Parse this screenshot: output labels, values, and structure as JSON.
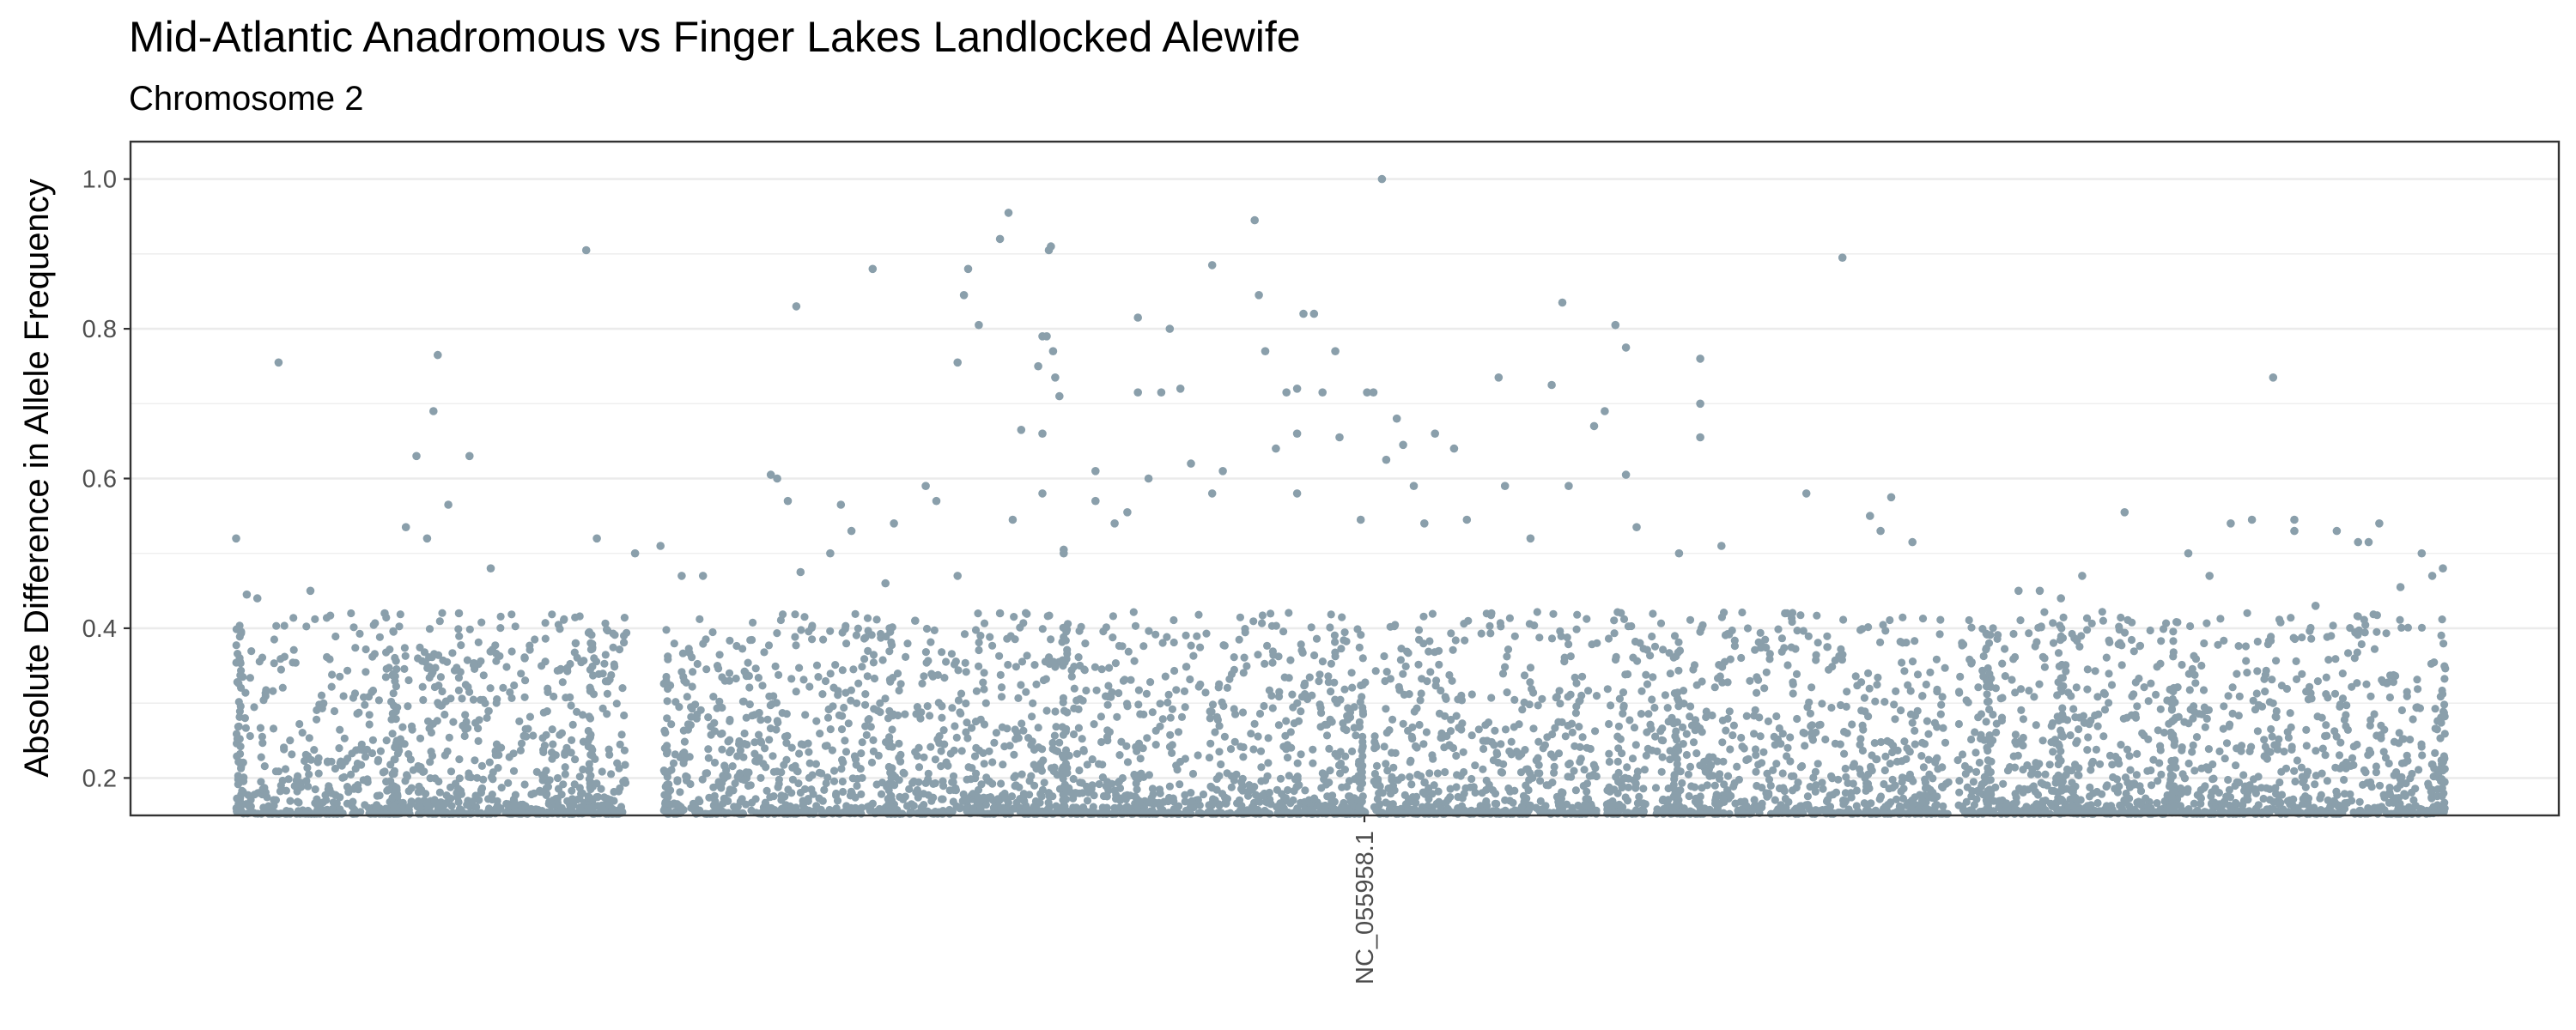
{
  "chart_data": {
    "type": "scatter",
    "title": "Mid-Atlantic Anadromous vs Finger Lakes Landlocked Alewife",
    "subtitle": "Chromosome 2",
    "xlabel": "",
    "ylabel": "Absolute Difference in Allele Frequency",
    "x_tick_labels": [
      "NC_055958.1"
    ],
    "y_ticks": [
      "0.2",
      "0.4",
      "0.6",
      "0.8",
      "1.0"
    ],
    "ylim": [
      0.15,
      1.05
    ],
    "grid": true,
    "legend": "none",
    "point_color": "#8a9fab",
    "series": [
      {
        "points": [
          {
            "x": 0.0,
            "y": 0.52
          },
          {
            "x": 0.005,
            "y": 0.445
          },
          {
            "x": 0.01,
            "y": 0.44
          },
          {
            "x": 0.02,
            "y": 0.755
          },
          {
            "x": 0.035,
            "y": 0.45
          },
          {
            "x": 0.07,
            "y": 0.42
          },
          {
            "x": 0.08,
            "y": 0.535
          },
          {
            "x": 0.085,
            "y": 0.63
          },
          {
            "x": 0.09,
            "y": 0.52
          },
          {
            "x": 0.093,
            "y": 0.69
          },
          {
            "x": 0.095,
            "y": 0.765
          },
          {
            "x": 0.1,
            "y": 0.565
          },
          {
            "x": 0.105,
            "y": 0.42
          },
          {
            "x": 0.11,
            "y": 0.63
          },
          {
            "x": 0.12,
            "y": 0.48
          },
          {
            "x": 0.136,
            "y": 0.36
          },
          {
            "x": 0.16,
            "y": 0.38
          },
          {
            "x": 0.165,
            "y": 0.905
          },
          {
            "x": 0.17,
            "y": 0.52
          },
          {
            "x": 0.188,
            "y": 0.5
          },
          {
            "x": 0.2,
            "y": 0.51
          },
          {
            "x": 0.21,
            "y": 0.47
          },
          {
            "x": 0.22,
            "y": 0.47
          },
          {
            "x": 0.252,
            "y": 0.605
          },
          {
            "x": 0.255,
            "y": 0.6
          },
          {
            "x": 0.26,
            "y": 0.57
          },
          {
            "x": 0.264,
            "y": 0.83
          },
          {
            "x": 0.266,
            "y": 0.475
          },
          {
            "x": 0.28,
            "y": 0.5
          },
          {
            "x": 0.285,
            "y": 0.565
          },
          {
            "x": 0.29,
            "y": 0.53
          },
          {
            "x": 0.3,
            "y": 0.88
          },
          {
            "x": 0.306,
            "y": 0.46
          },
          {
            "x": 0.31,
            "y": 0.54
          },
          {
            "x": 0.32,
            "y": 0.41
          },
          {
            "x": 0.325,
            "y": 0.59
          },
          {
            "x": 0.33,
            "y": 0.57
          },
          {
            "x": 0.34,
            "y": 0.755
          },
          {
            "x": 0.34,
            "y": 0.47
          },
          {
            "x": 0.345,
            "y": 0.88
          },
          {
            "x": 0.343,
            "y": 0.845
          },
          {
            "x": 0.35,
            "y": 0.805
          },
          {
            "x": 0.36,
            "y": 0.42
          },
          {
            "x": 0.36,
            "y": 0.92
          },
          {
            "x": 0.364,
            "y": 0.955
          },
          {
            "x": 0.366,
            "y": 0.545
          },
          {
            "x": 0.37,
            "y": 0.665
          },
          {
            "x": 0.378,
            "y": 0.75
          },
          {
            "x": 0.38,
            "y": 0.79
          },
          {
            "x": 0.382,
            "y": 0.79
          },
          {
            "x": 0.38,
            "y": 0.66
          },
          {
            "x": 0.38,
            "y": 0.58
          },
          {
            "x": 0.383,
            "y": 0.905
          },
          {
            "x": 0.384,
            "y": 0.91
          },
          {
            "x": 0.385,
            "y": 0.77
          },
          {
            "x": 0.386,
            "y": 0.735
          },
          {
            "x": 0.388,
            "y": 0.71
          },
          {
            "x": 0.39,
            "y": 0.505
          },
          {
            "x": 0.39,
            "y": 0.5
          },
          {
            "x": 0.405,
            "y": 0.61
          },
          {
            "x": 0.405,
            "y": 0.57
          },
          {
            "x": 0.414,
            "y": 0.54
          },
          {
            "x": 0.42,
            "y": 0.555
          },
          {
            "x": 0.425,
            "y": 0.715
          },
          {
            "x": 0.425,
            "y": 0.815
          },
          {
            "x": 0.43,
            "y": 0.6
          },
          {
            "x": 0.436,
            "y": 0.715
          },
          {
            "x": 0.44,
            "y": 0.8
          },
          {
            "x": 0.445,
            "y": 0.72
          },
          {
            "x": 0.45,
            "y": 0.62
          },
          {
            "x": 0.46,
            "y": 0.58
          },
          {
            "x": 0.46,
            "y": 0.885
          },
          {
            "x": 0.465,
            "y": 0.61
          },
          {
            "x": 0.48,
            "y": 0.945
          },
          {
            "x": 0.482,
            "y": 0.845
          },
          {
            "x": 0.485,
            "y": 0.77
          },
          {
            "x": 0.49,
            "y": 0.64
          },
          {
            "x": 0.495,
            "y": 0.715
          },
          {
            "x": 0.5,
            "y": 0.72
          },
          {
            "x": 0.5,
            "y": 0.66
          },
          {
            "x": 0.5,
            "y": 0.58
          },
          {
            "x": 0.503,
            "y": 0.82
          },
          {
            "x": 0.508,
            "y": 0.82
          },
          {
            "x": 0.512,
            "y": 0.715
          },
          {
            "x": 0.518,
            "y": 0.77
          },
          {
            "x": 0.52,
            "y": 0.655
          },
          {
            "x": 0.53,
            "y": 0.545
          },
          {
            "x": 0.533,
            "y": 0.715
          },
          {
            "x": 0.536,
            "y": 0.715
          },
          {
            "x": 0.54,
            "y": 1.0
          },
          {
            "x": 0.542,
            "y": 0.625
          },
          {
            "x": 0.547,
            "y": 0.68
          },
          {
            "x": 0.55,
            "y": 0.645
          },
          {
            "x": 0.555,
            "y": 0.59
          },
          {
            "x": 0.56,
            "y": 0.54
          },
          {
            "x": 0.565,
            "y": 0.66
          },
          {
            "x": 0.574,
            "y": 0.64
          },
          {
            "x": 0.58,
            "y": 0.545
          },
          {
            "x": 0.595,
            "y": 0.735
          },
          {
            "x": 0.598,
            "y": 0.59
          },
          {
            "x": 0.61,
            "y": 0.52
          },
          {
            "x": 0.62,
            "y": 0.725
          },
          {
            "x": 0.625,
            "y": 0.835
          },
          {
            "x": 0.628,
            "y": 0.59
          },
          {
            "x": 0.64,
            "y": 0.67
          },
          {
            "x": 0.645,
            "y": 0.69
          },
          {
            "x": 0.65,
            "y": 0.805
          },
          {
            "x": 0.655,
            "y": 0.775
          },
          {
            "x": 0.655,
            "y": 0.605
          },
          {
            "x": 0.66,
            "y": 0.535
          },
          {
            "x": 0.68,
            "y": 0.5
          },
          {
            "x": 0.69,
            "y": 0.76
          },
          {
            "x": 0.69,
            "y": 0.7
          },
          {
            "x": 0.69,
            "y": 0.655
          },
          {
            "x": 0.7,
            "y": 0.51
          },
          {
            "x": 0.73,
            "y": 0.42
          },
          {
            "x": 0.74,
            "y": 0.58
          },
          {
            "x": 0.757,
            "y": 0.895
          },
          {
            "x": 0.77,
            "y": 0.55
          },
          {
            "x": 0.775,
            "y": 0.53
          },
          {
            "x": 0.78,
            "y": 0.575
          },
          {
            "x": 0.79,
            "y": 0.515
          },
          {
            "x": 0.84,
            "y": 0.45
          },
          {
            "x": 0.85,
            "y": 0.45
          },
          {
            "x": 0.86,
            "y": 0.44
          },
          {
            "x": 0.87,
            "y": 0.47
          },
          {
            "x": 0.89,
            "y": 0.555
          },
          {
            "x": 0.92,
            "y": 0.5
          },
          {
            "x": 0.93,
            "y": 0.47
          },
          {
            "x": 0.94,
            "y": 0.54
          },
          {
            "x": 0.95,
            "y": 0.545
          },
          {
            "x": 0.96,
            "y": 0.735
          },
          {
            "x": 0.97,
            "y": 0.545
          },
          {
            "x": 0.97,
            "y": 0.53
          },
          {
            "x": 0.98,
            "y": 0.43
          },
          {
            "x": 0.99,
            "y": 0.53
          },
          {
            "x": 1.0,
            "y": 0.515
          },
          {
            "x": 1.005,
            "y": 0.515
          },
          {
            "x": 1.01,
            "y": 0.54
          },
          {
            "x": 1.02,
            "y": 0.455
          },
          {
            "x": 1.03,
            "y": 0.5
          },
          {
            "x": 1.035,
            "y": 0.47
          },
          {
            "x": 1.04,
            "y": 0.48
          }
        ]
      }
    ]
  }
}
